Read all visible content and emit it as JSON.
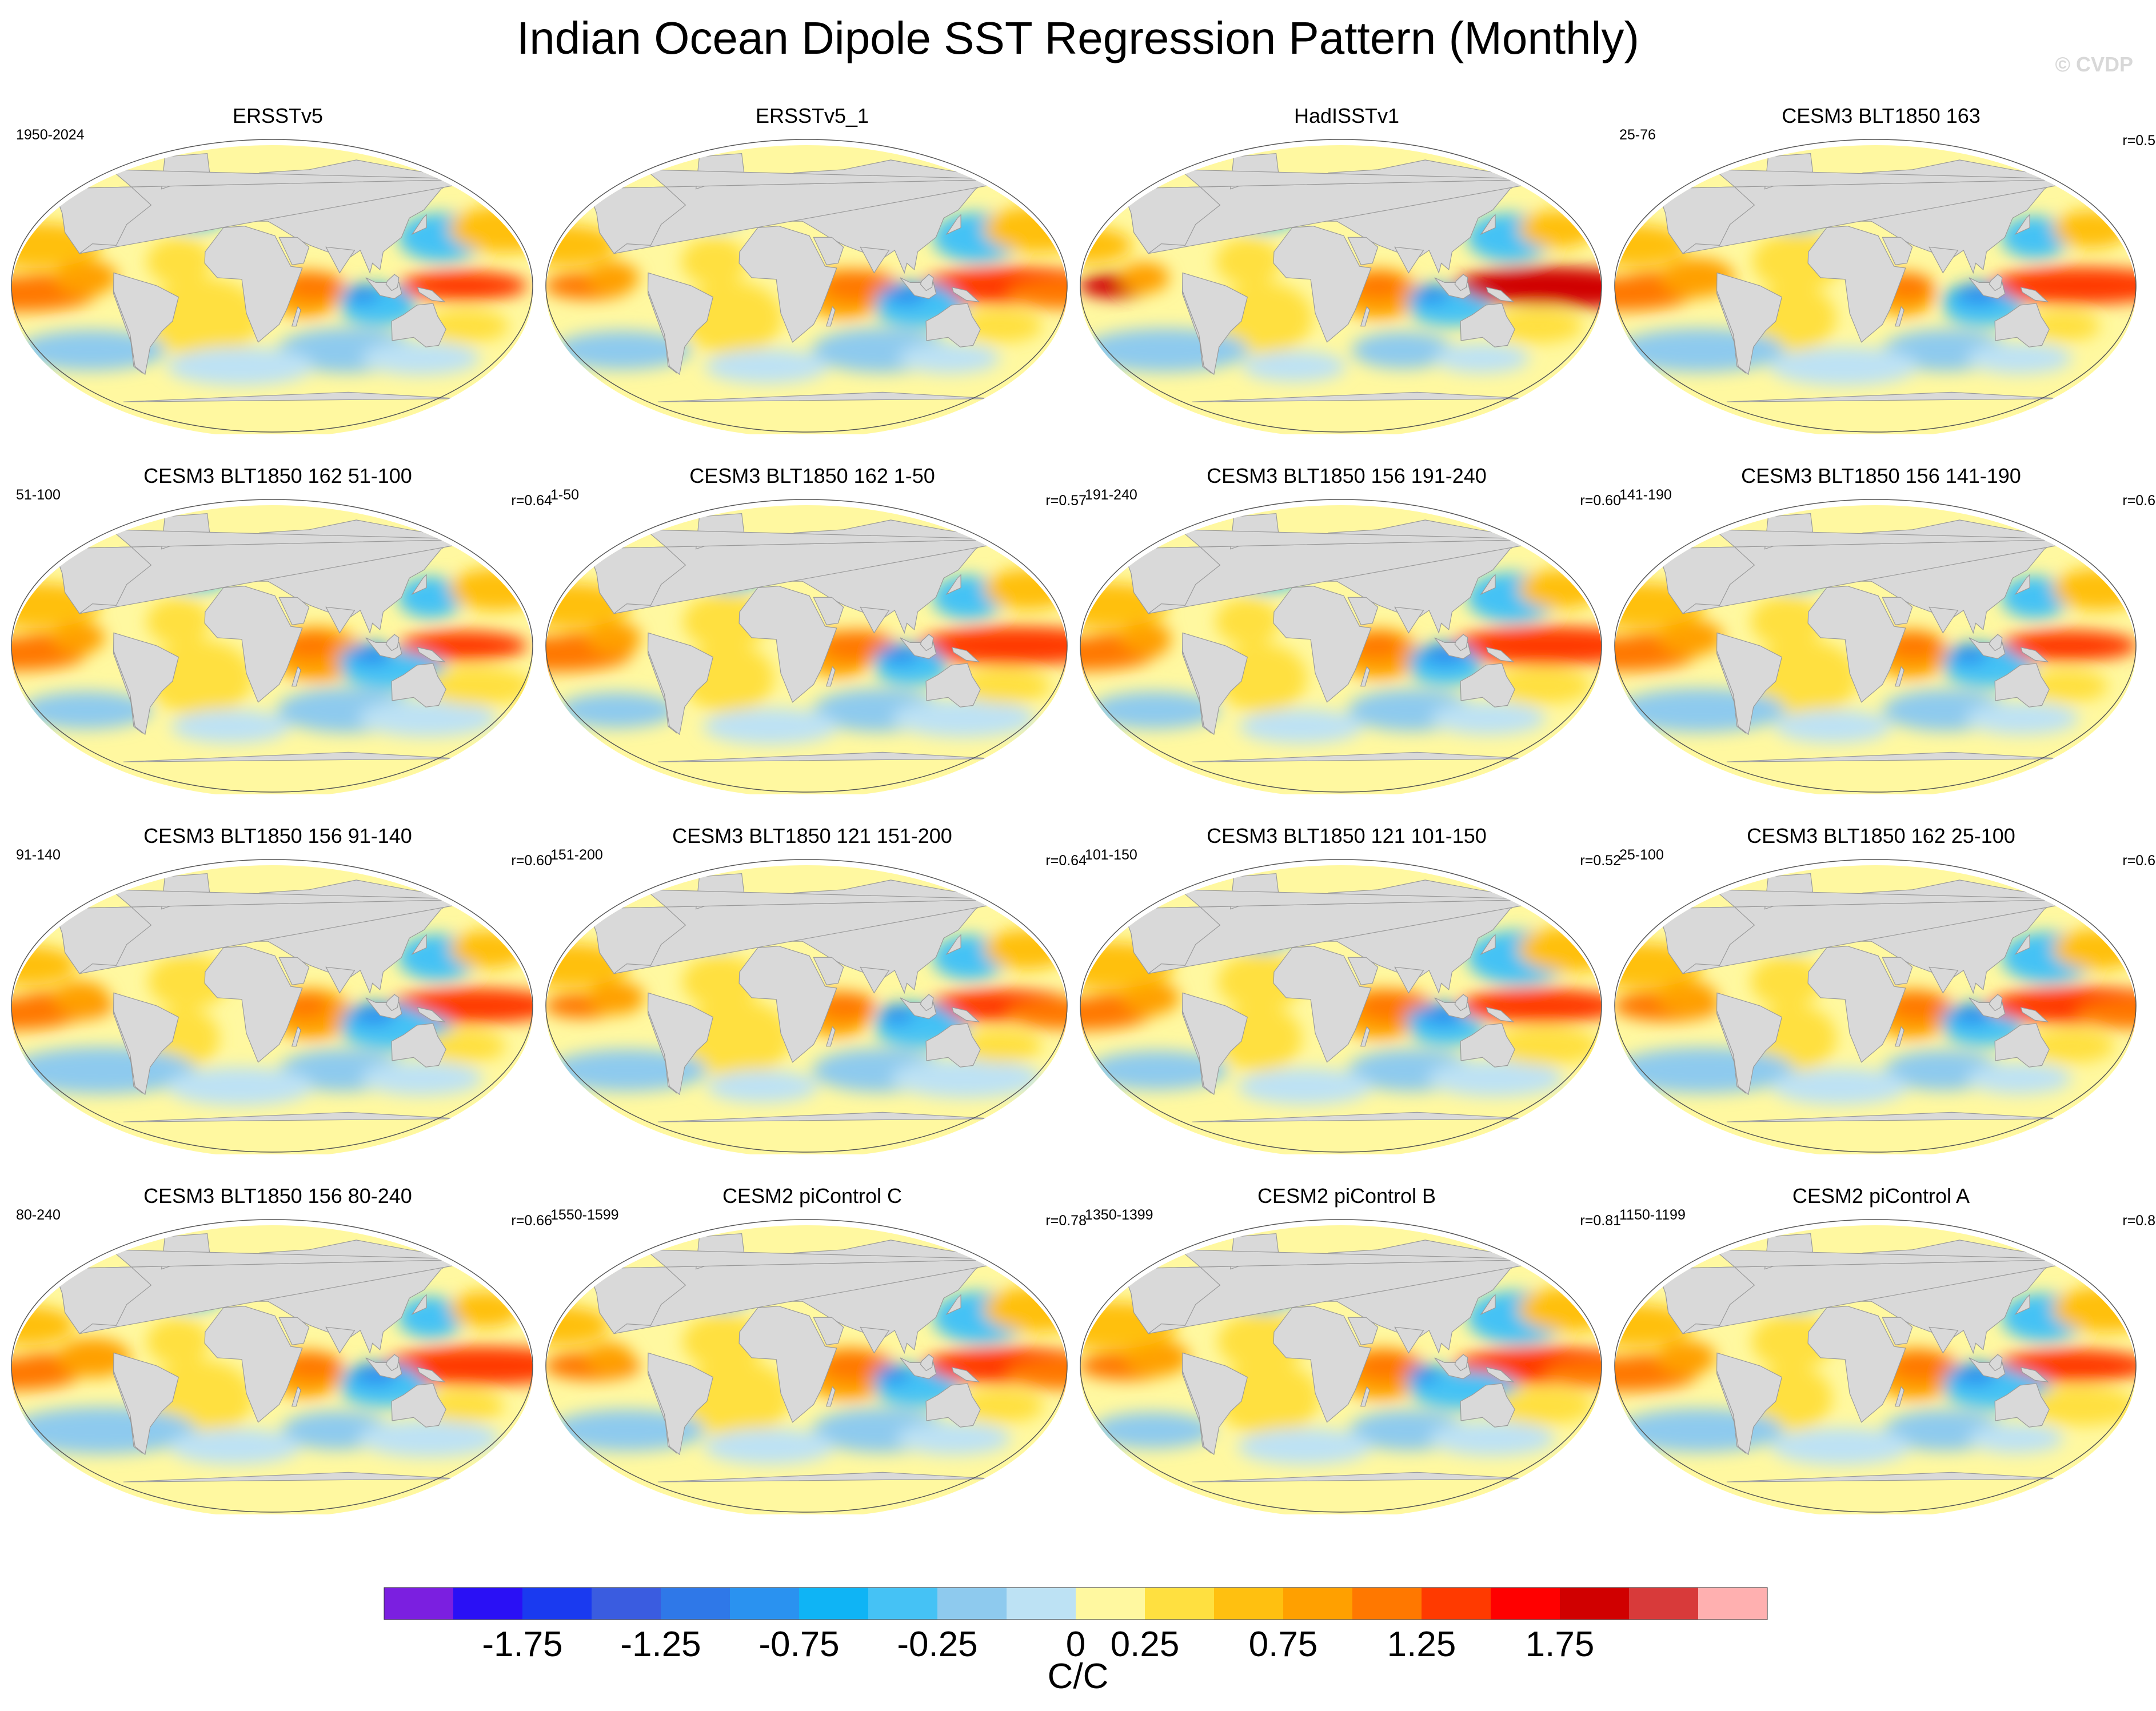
{
  "title": "Indian Ocean Dipole SST Regression Pattern (Monthly)",
  "watermark": "© CVDP",
  "chart_data": {
    "type": "heatmap",
    "projection": "Robinson global map grid, 4 x 4 panels",
    "panels": [
      {
        "title": "ERSSTv5",
        "period": "1950-2024",
        "r": ""
      },
      {
        "title": "ERSSTv5_1",
        "period": "",
        "r": ""
      },
      {
        "title": "HadISSTv1",
        "period": "",
        "r": ""
      },
      {
        "title": "CESM3 BLT1850 163",
        "period": "25-76",
        "r": "r=0.5"
      },
      {
        "title": "CESM3 BLT1850 162 51-100",
        "period": "51-100",
        "r": "r=0.64"
      },
      {
        "title": "CESM3 BLT1850 162 1-50",
        "period": "1-50",
        "r": "r=0.57"
      },
      {
        "title": "CESM3 BLT1850 156 191-240",
        "period": "191-240",
        "r": "r=0.60"
      },
      {
        "title": "CESM3 BLT1850 156 141-190",
        "period": "141-190",
        "r": "r=0.6"
      },
      {
        "title": "CESM3 BLT1850 156 91-140",
        "period": "91-140",
        "r": "r=0.60"
      },
      {
        "title": "CESM3 BLT1850 121 151-200",
        "period": "151-200",
        "r": "r=0.64"
      },
      {
        "title": "CESM3 BLT1850 121 101-150",
        "period": "101-150",
        "r": "r=0.52"
      },
      {
        "title": "CESM3 BLT1850 162 25-100",
        "period": "25-100",
        "r": "r=0.6"
      },
      {
        "title": "CESM3 BLT1850 156 80-240",
        "period": "80-240",
        "r": "r=0.66"
      },
      {
        "title": "CESM2 piControl C",
        "period": "1550-1599",
        "r": "r=0.78"
      },
      {
        "title": "CESM2 piControl B",
        "period": "1350-1399",
        "r": "r=0.81"
      },
      {
        "title": "CESM2 piControl A",
        "period": "1150-1199",
        "r": "r=0.8"
      }
    ],
    "colorbar": {
      "units": "C/C",
      "labels": [
        "-1.75",
        "-1.25",
        "-0.75",
        "-0.25",
        "0",
        "0.25",
        "0.75",
        "1.25",
        "1.75"
      ],
      "colors": [
        "#7b1fe0",
        "#2a10f5",
        "#1a3af0",
        "#3a5ce0",
        "#2f78e8",
        "#2a92f0",
        "#0fb4f5",
        "#45c2f5",
        "#8ecaee",
        "#bde2f4",
        "#fff8a0",
        "#ffe040",
        "#ffc010",
        "#ffa000",
        "#ff7800",
        "#ff3a00",
        "#ff0000",
        "#d00000",
        "#d83a3a",
        "#ffb0b0"
      ]
    }
  }
}
